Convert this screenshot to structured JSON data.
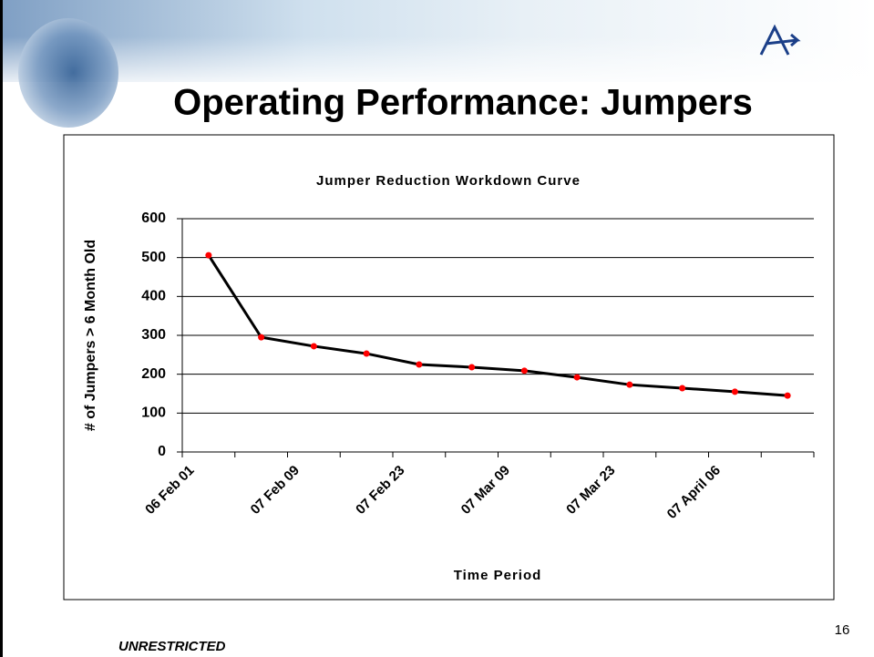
{
  "header": {
    "title": "Operating Performance: Jumpers"
  },
  "footer": {
    "classification": "UNRESTRICTED",
    "page_number": "16"
  },
  "chart_data": {
    "type": "line",
    "title": "Jumper Reduction Workdown Curve",
    "x_label": "Time Period",
    "y_label": "# of Jumpers > 6 Month Old",
    "categories": [
      "06 Feb 01",
      null,
      "07 Feb 09",
      null,
      "07 Feb 23",
      null,
      "07 Mar 09",
      null,
      "07 Mar 23",
      null,
      "07 April 06",
      null
    ],
    "series": [
      {
        "name": "Jumpers",
        "color": "#000000",
        "marker_color": "#ff0000",
        "values": [
          506,
          295,
          272,
          253,
          225,
          218,
          209,
          192,
          173,
          164,
          155,
          145
        ]
      }
    ],
    "ylim": [
      0,
      600
    ],
    "yticks": [
      0,
      100,
      200,
      300,
      400,
      500,
      600
    ],
    "grid": true
  }
}
